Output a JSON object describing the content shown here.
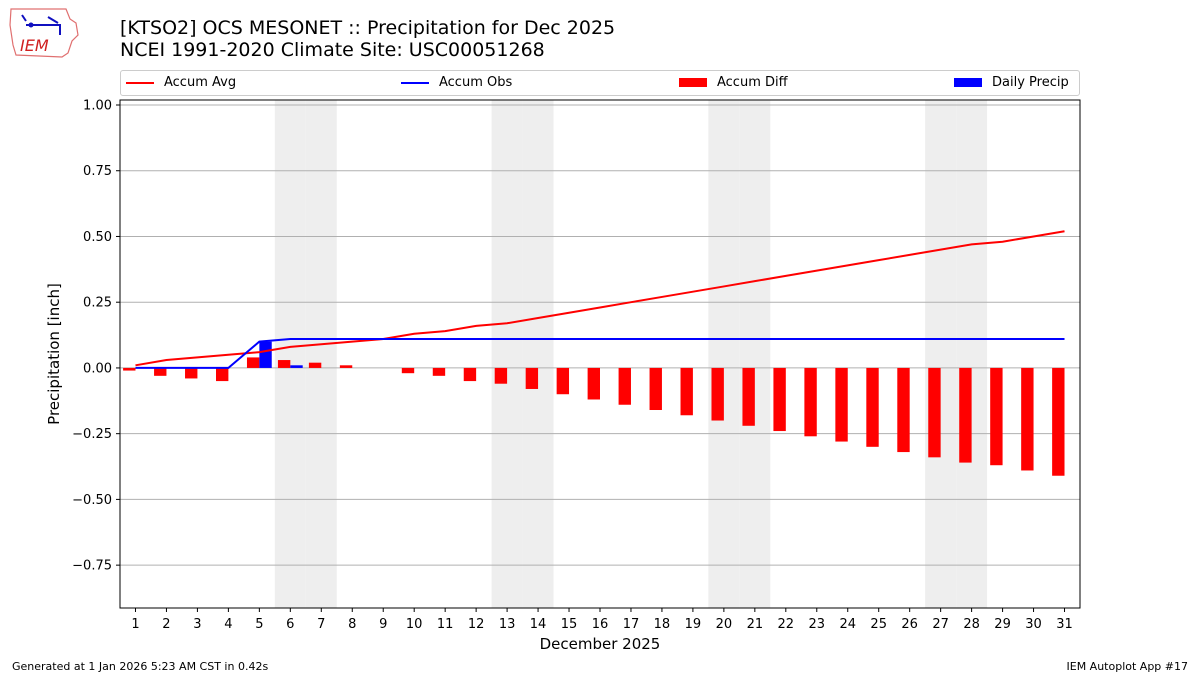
{
  "header": {
    "title_line1": "[KTSO2] OCS MESONET :: Precipitation for Dec 2025",
    "title_line2": "NCEI 1991-2020 Climate Site: USC00051268",
    "logo_text": "IEM"
  },
  "footer": {
    "left": "Generated at 1 Jan 2026 5:23 AM CST in 0.42s",
    "right": "IEM Autoplot App #17"
  },
  "colors": {
    "avg": "#ff0000",
    "obs": "#0000ff",
    "diff": "#ff0000",
    "daily": "#0000ff",
    "weekend": "#eeeeee",
    "grid": "#b0b0b0"
  },
  "chart_data": {
    "type": "bar",
    "xlabel": "December 2025",
    "ylabel": "Precipitation [inch]",
    "xlim": [
      0.5,
      31.5
    ],
    "ylim": [
      -0.913,
      1.019
    ],
    "grid": true,
    "legend_placement": "top",
    "x": [
      1,
      2,
      3,
      4,
      5,
      6,
      7,
      8,
      9,
      10,
      11,
      12,
      13,
      14,
      15,
      16,
      17,
      18,
      19,
      20,
      21,
      22,
      23,
      24,
      25,
      26,
      27,
      28,
      29,
      30,
      31
    ],
    "yticks": [
      1.0,
      0.75,
      0.5,
      0.25,
      0.0,
      -0.25,
      -0.5,
      -0.75
    ],
    "ytick_labels": [
      "1.00",
      "0.75",
      "0.50",
      "0.25",
      "0.00",
      "−0.25",
      "−0.50",
      "−0.75"
    ],
    "weekend_days": [
      6,
      7,
      13,
      14,
      20,
      21,
      27,
      28
    ],
    "series": [
      {
        "name": "Accum Avg",
        "kind": "line",
        "values": [
          0.01,
          0.03,
          0.04,
          0.05,
          0.06,
          0.08,
          0.09,
          0.1,
          0.11,
          0.13,
          0.14,
          0.16,
          0.17,
          0.19,
          0.21,
          0.23,
          0.25,
          0.27,
          0.29,
          0.31,
          0.33,
          0.35,
          0.37,
          0.39,
          0.41,
          0.43,
          0.45,
          0.47,
          0.48,
          0.5,
          0.52
        ]
      },
      {
        "name": "Accum Obs",
        "kind": "line",
        "values": [
          0,
          0,
          0,
          0,
          0.1,
          0.11,
          0.11,
          0.11,
          0.11,
          0.11,
          0.11,
          0.11,
          0.11,
          0.11,
          0.11,
          0.11,
          0.11,
          0.11,
          0.11,
          0.11,
          0.11,
          0.11,
          0.11,
          0.11,
          0.11,
          0.11,
          0.11,
          0.11,
          0.11,
          0.11,
          0.11
        ]
      },
      {
        "name": "Accum Diff",
        "kind": "bar",
        "values": [
          -0.01,
          -0.03,
          -0.04,
          -0.05,
          0.04,
          0.03,
          0.02,
          0.01,
          0.0,
          -0.02,
          -0.03,
          -0.05,
          -0.06,
          -0.08,
          -0.1,
          -0.12,
          -0.14,
          -0.16,
          -0.18,
          -0.2,
          -0.22,
          -0.24,
          -0.26,
          -0.28,
          -0.3,
          -0.32,
          -0.34,
          -0.36,
          -0.37,
          -0.39,
          -0.41
        ]
      },
      {
        "name": "Daily Precip",
        "kind": "bar",
        "values": [
          0,
          0,
          0,
          0,
          0.1,
          0.01,
          0,
          0,
          0,
          0,
          0,
          0,
          0,
          0,
          0,
          0,
          0,
          0,
          0,
          0,
          0,
          0,
          0,
          0,
          0,
          0,
          0,
          0,
          0,
          0,
          0
        ]
      }
    ]
  }
}
